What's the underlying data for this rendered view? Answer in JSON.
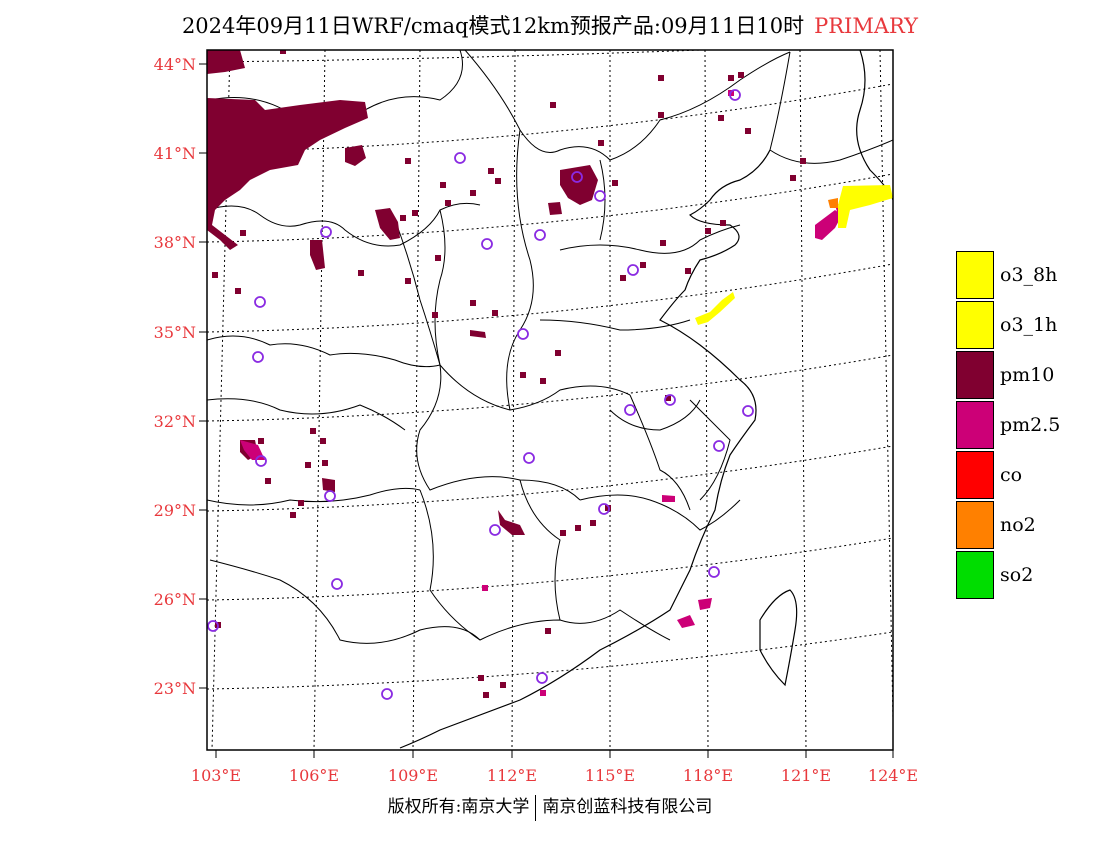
{
  "title": {
    "main": "2024年09月11日WRF/cmaq模式12km预报产品:09月11日10时",
    "tag": "PRIMARY"
  },
  "axes": {
    "lat_labels": [
      "44°N",
      "41°N",
      "38°N",
      "35°N",
      "32°N",
      "29°N",
      "26°N",
      "23°N"
    ],
    "lon_labels": [
      "103°E",
      "106°E",
      "109°E",
      "112°E",
      "115°E",
      "118°E",
      "121°E",
      "124°E"
    ]
  },
  "legend": [
    {
      "label": "o3_8h",
      "color": "#ffff00"
    },
    {
      "label": "o3_1h",
      "color": "#ffff00"
    },
    {
      "label": "pm10",
      "color": "#800030"
    },
    {
      "label": "pm2.5",
      "color": "#cc0077"
    },
    {
      "label": "co",
      "color": "#ff0000"
    },
    {
      "label": "no2",
      "color": "#ff8000"
    },
    {
      "label": "so2",
      "color": "#00dd00"
    }
  ],
  "footer": {
    "left": "版权所有:南京大学",
    "right": "南京创蓝科技有限公司"
  },
  "colors": {
    "pm10": "#800030",
    "pm25": "#cc0077",
    "o3": "#ffff00",
    "no2": "#ff8000",
    "station": "#8a2be2",
    "label": "#e8383c"
  }
}
